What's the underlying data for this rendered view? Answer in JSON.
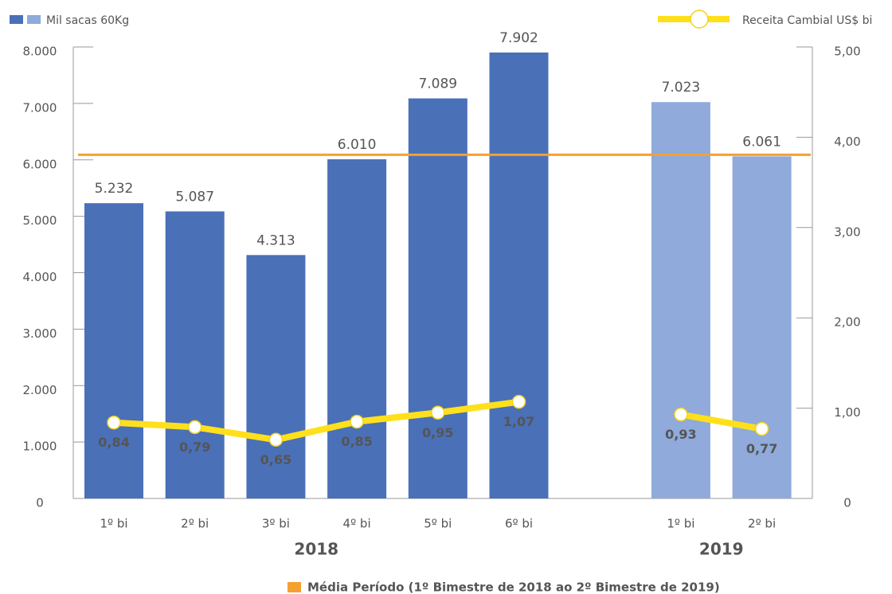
{
  "chart_data": {
    "type": "bar-line",
    "bar_series_name": "Mil sacas 60Kg",
    "line_series_name": "Receita Cambial US$ bi",
    "line_color": "#ffe01b",
    "ylim": [
      0,
      8000
    ],
    "yticks": [
      0,
      {
        "value": 1000,
        "label": "1.000"
      },
      {
        "value": 2000,
        "label": "2.000"
      },
      {
        "value": 3000,
        "label": "3.000"
      },
      {
        "value": 4000,
        "label": "4.000"
      },
      {
        "value": 5000,
        "label": "5.000"
      },
      {
        "value": 6000,
        "label": "6.000"
      },
      {
        "value": 7000,
        "label": "7.000"
      },
      {
        "value": 8000,
        "label": "8.000"
      }
    ],
    "y2lim": [
      0,
      5
    ],
    "y2ticks": [
      0,
      {
        "value": 1,
        "label": "1,00"
      },
      {
        "value": 2,
        "label": "2,00"
      },
      {
        "value": 3,
        "label": "3,00"
      },
      {
        "value": 4,
        "label": "4,00"
      },
      {
        "value": 5,
        "label": "5,00"
      }
    ],
    "average": {
      "name": "Média Período (1º Bimestre de 2018  ao 2º Bimestre de 2019)",
      "value": 6090,
      "color": "#f5a031"
    },
    "years": [
      {
        "label": "2018",
        "label_color": "#2c4a82",
        "bar_color": "#4a70b8",
        "categories": [
          "1º bi",
          "2º bi",
          "3º bi",
          "4º bi",
          "5º bi",
          "6º bi"
        ],
        "bars": [
          5232,
          5087,
          4313,
          6010,
          7089,
          7902
        ],
        "bar_labels": [
          "5.232",
          "5.087",
          "4.313",
          "6.010",
          "7.089",
          "7.902"
        ],
        "line": [
          0.84,
          0.79,
          0.65,
          0.85,
          0.95,
          1.07
        ],
        "line_labels": [
          "0,84",
          "0,79",
          "0,65",
          "0,85",
          "0,95",
          "1,07"
        ]
      },
      {
        "label": "2019",
        "label_color": "#a3b8dd",
        "bar_color": "#8faadb",
        "categories": [
          "1º bi",
          "2º bi"
        ],
        "bars": [
          7023,
          6061
        ],
        "bar_labels": [
          "7.023",
          "6.061"
        ],
        "line": [
          0.93,
          0.77
        ],
        "line_labels": [
          "0,93",
          "0,77"
        ]
      }
    ]
  }
}
